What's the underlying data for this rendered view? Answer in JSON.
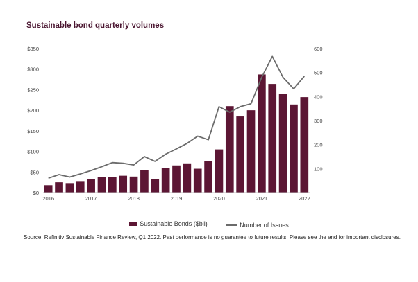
{
  "chart_data": {
    "type": "bar",
    "title": "Sustainable bond quarterly volumes",
    "quarters": 25,
    "x_tick_labels": [
      {
        "label": "2016",
        "quarter_index": 0
      },
      {
        "label": "2017",
        "quarter_index": 4
      },
      {
        "label": "2018",
        "quarter_index": 8
      },
      {
        "label": "2019",
        "quarter_index": 12
      },
      {
        "label": "2020",
        "quarter_index": 16
      },
      {
        "label": "2021",
        "quarter_index": 20
      },
      {
        "label": "2022",
        "quarter_index": 24
      }
    ],
    "y_left": {
      "min": 0,
      "max": 350,
      "ticks": [
        "$0",
        "$50",
        "$100",
        "$150",
        "$200",
        "$250",
        "$300",
        "$350"
      ]
    },
    "y_right": {
      "min": 0,
      "max": 600,
      "ticks": [
        "100",
        "200",
        "300",
        "400",
        "500",
        "600"
      ]
    },
    "series": [
      {
        "name": "Sustainable Bonds ($bil)",
        "type": "bar",
        "axis": "left",
        "color": "#5c1634",
        "values": [
          18,
          25,
          23,
          28,
          33,
          38,
          38,
          41,
          39,
          54,
          33,
          60,
          66,
          71,
          58,
          77,
          105,
          210,
          185,
          200,
          287,
          264,
          240,
          214,
          232
        ]
      },
      {
        "name": "Number of Issues",
        "type": "line",
        "axis": "right",
        "color": "#6b6b6b",
        "values": [
          60,
          75,
          65,
          78,
          92,
          108,
          125,
          122,
          115,
          150,
          130,
          160,
          182,
          205,
          235,
          220,
          358,
          335,
          358,
          370,
          480,
          567,
          480,
          432,
          485
        ]
      }
    ],
    "grid": false,
    "legend_position": "bottom"
  },
  "source_text": "Source: Refinitiv Sustainable Finance Review, Q1 2022. Past performance is no guarantee to future results. Please see the end for important disclosures."
}
